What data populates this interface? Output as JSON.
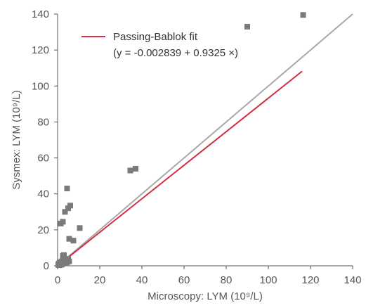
{
  "chart_data": {
    "type": "scatter",
    "title": "",
    "xlabel": "Microscopy: LYM (10⁹/L)",
    "ylabel": "Sysmex: LYM (10⁹/L)",
    "xlim": [
      0,
      140
    ],
    "ylim": [
      0,
      140
    ],
    "xticks": [
      "0",
      "20",
      "40",
      "60",
      "80",
      "100",
      "120",
      "140"
    ],
    "yticks": [
      "0",
      "20",
      "40",
      "60",
      "80",
      "100",
      "120",
      "140"
    ],
    "grid": false,
    "legend": {
      "placement": "top-left",
      "entries": [
        "Passing-Bablok fit",
        "(y = -0.002839 + 0.9325 ×)"
      ]
    },
    "points": [
      [
        0.3,
        0.5
      ],
      [
        0.5,
        1.2
      ],
      [
        0.8,
        0.3
      ],
      [
        1.0,
        2.0
      ],
      [
        1.2,
        0.8
      ],
      [
        1.5,
        1.5
      ],
      [
        1.8,
        0.6
      ],
      [
        2.0,
        2.5
      ],
      [
        2.2,
        1.0
      ],
      [
        2.5,
        3.0
      ],
      [
        2.8,
        1.8
      ],
      [
        3.0,
        2.2
      ],
      [
        3.2,
        4.0
      ],
      [
        3.5,
        2.8
      ],
      [
        3.8,
        3.5
      ],
      [
        4.0,
        1.5
      ],
      [
        4.2,
        3.2
      ],
      [
        4.5,
        2.0
      ],
      [
        5.0,
        3.8
      ],
      [
        5.5,
        2.5
      ],
      [
        2.5,
        5.5
      ],
      [
        3.0,
        6.0
      ],
      [
        1.5,
        23.5
      ],
      [
        2.5,
        24.5
      ],
      [
        3.5,
        30
      ],
      [
        5.0,
        32
      ],
      [
        4.5,
        43
      ],
      [
        6.0,
        33.5
      ],
      [
        5.5,
        15
      ],
      [
        7.5,
        14
      ],
      [
        10.5,
        21
      ],
      [
        34.5,
        53
      ],
      [
        37,
        54
      ],
      [
        90,
        133
      ],
      [
        116.5,
        139.5
      ]
    ],
    "fit_line": {
      "name": "Passing-Bablok fit",
      "intercept": -0.002839,
      "slope": 0.9325,
      "x_range": [
        5,
        116
      ],
      "color": "#d22f43"
    },
    "identity_line": {
      "x_range": [
        0,
        140
      ],
      "color": "#a8a8a8"
    },
    "marker_color": "#7a7a7a"
  }
}
